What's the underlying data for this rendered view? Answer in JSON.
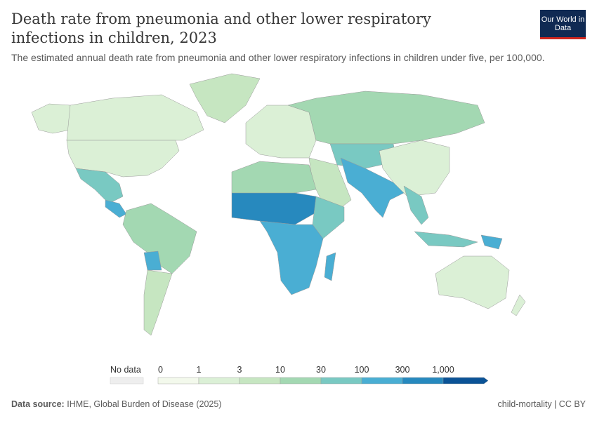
{
  "header": {
    "title": "Death rate from pneumonia and other lower respiratory infections in children, 2023",
    "subtitle": "The estimated annual death rate from pneumonia and other lower respiratory infections in children under five, per 100,000.",
    "logo": "Our World in Data"
  },
  "legend": {
    "no_data_label": "No data",
    "ticks": [
      "0",
      "1",
      "3",
      "10",
      "30",
      "100",
      "300",
      "1,000"
    ],
    "colors": [
      "#f3f9ec",
      "#dbf0d6",
      "#c6e6c1",
      "#a3d8b2",
      "#79c9c2",
      "#4aaed3",
      "#2789be",
      "#0b5396"
    ],
    "no_data_color": "#e0e0e0"
  },
  "footer": {
    "source_label": "Data source:",
    "source": "IHME, Global Burden of Disease (2025)",
    "slug": "child-mortality | CC BY"
  }
}
